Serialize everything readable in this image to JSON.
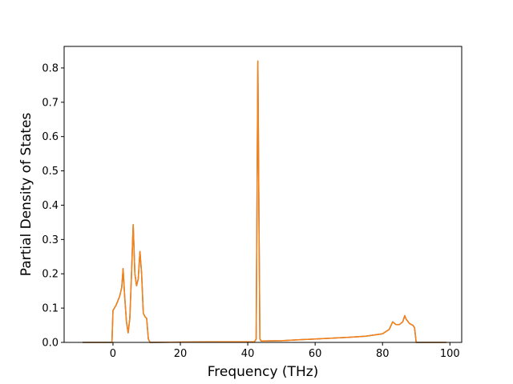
{
  "chart_data": {
    "type": "line",
    "xlabel": "Frequency (THz)",
    "ylabel": "Partial Density of States",
    "xlim": [
      -14.5,
      103.5
    ],
    "ylim": [
      0,
      0.8628
    ],
    "xticks": [
      0,
      20,
      40,
      60,
      80,
      100
    ],
    "yticks": [
      0.0,
      0.1,
      0.2,
      0.3,
      0.4,
      0.5,
      0.6,
      0.7,
      0.8
    ],
    "xtick_labels": [
      "0",
      "20",
      "40",
      "60",
      "80",
      "100"
    ],
    "ytick_labels": [
      "0.0",
      "0.1",
      "0.2",
      "0.3",
      "0.4",
      "0.5",
      "0.6",
      "0.7",
      "0.8"
    ],
    "grid": false,
    "colors": {
      "primary": "#1f77b4",
      "secondary": "#ff7f0e"
    },
    "series": [
      {
        "color": "#1f77b4",
        "x": [
          -9,
          -0.3,
          0,
          1,
          2,
          2.6,
          3,
          3.5,
          4,
          4.5,
          5,
          5.5,
          6,
          6.5,
          7,
          7.5,
          8,
          8.5,
          9,
          9.5,
          10,
          10.5,
          11,
          20,
          42,
          42.5,
          43,
          43.3,
          43.6,
          44,
          50,
          60,
          70,
          75,
          80,
          82,
          83,
          84,
          85,
          86,
          86.6,
          87,
          88,
          89,
          89.5,
          90,
          95,
          99
        ],
        "y": [
          0,
          0,
          0.093,
          0.11,
          0.135,
          0.16,
          0.215,
          0.13,
          0.06,
          0.028,
          0.07,
          0.2,
          0.343,
          0.2,
          0.165,
          0.185,
          0.265,
          0.2,
          0.085,
          0.075,
          0.07,
          0.01,
          0,
          0.001,
          0.002,
          0.01,
          0.82,
          0.4,
          0.01,
          0.004,
          0.005,
          0.01,
          0.015,
          0.018,
          0.025,
          0.038,
          0.06,
          0.052,
          0.052,
          0.06,
          0.078,
          0.068,
          0.055,
          0.05,
          0.043,
          0,
          0,
          0
        ]
      },
      {
        "color": "#ff7f0e",
        "x": [
          -9,
          -0.3,
          0,
          1,
          2,
          2.6,
          3,
          3.5,
          4,
          4.5,
          5,
          5.5,
          6,
          6.5,
          7,
          7.5,
          8,
          8.5,
          9,
          9.5,
          10,
          10.5,
          11,
          20,
          42,
          42.5,
          43,
          43.3,
          43.6,
          44,
          50,
          60,
          70,
          75,
          80,
          82,
          83,
          84,
          85,
          86,
          86.6,
          87,
          88,
          89,
          89.5,
          90,
          95,
          99
        ],
        "y": [
          0,
          0,
          0.093,
          0.11,
          0.135,
          0.16,
          0.215,
          0.13,
          0.06,
          0.028,
          0.07,
          0.2,
          0.343,
          0.2,
          0.165,
          0.185,
          0.265,
          0.2,
          0.085,
          0.075,
          0.07,
          0.01,
          0,
          0.001,
          0.002,
          0.01,
          0.82,
          0.4,
          0.01,
          0.004,
          0.005,
          0.01,
          0.015,
          0.018,
          0.025,
          0.038,
          0.06,
          0.052,
          0.052,
          0.06,
          0.078,
          0.068,
          0.055,
          0.05,
          0.043,
          0,
          0,
          0
        ]
      }
    ]
  }
}
